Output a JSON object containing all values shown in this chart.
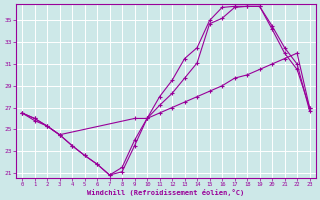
{
  "xlabel": "Windchill (Refroidissement éolien,°C)",
  "bg_color": "#cde8e8",
  "line_color": "#990099",
  "grid_color": "#ffffff",
  "ylim": [
    20.5,
    36.5
  ],
  "xlim": [
    -0.5,
    23.5
  ],
  "yticks": [
    21,
    23,
    25,
    27,
    29,
    31,
    33,
    35
  ],
  "xticks": [
    0,
    1,
    2,
    3,
    4,
    5,
    6,
    7,
    8,
    9,
    10,
    11,
    12,
    13,
    14,
    15,
    16,
    17,
    18,
    19,
    20,
    21,
    22,
    23
  ],
  "line1_x": [
    0,
    1,
    2,
    3,
    4,
    5,
    6,
    7,
    8,
    9,
    10,
    11,
    12,
    13,
    14,
    15,
    16,
    17,
    18,
    19,
    20,
    21,
    22,
    23
  ],
  "line1_y": [
    26.5,
    26.0,
    25.3,
    24.5,
    23.5,
    22.6,
    21.8,
    20.8,
    21.1,
    23.5,
    26.0,
    27.2,
    28.3,
    29.7,
    31.1,
    34.7,
    35.2,
    36.2,
    36.3,
    36.3,
    34.2,
    32.0,
    30.5,
    27.0
  ],
  "line2_x": [
    0,
    1,
    2,
    3,
    4,
    5,
    6,
    7,
    8,
    9,
    10,
    11,
    12,
    13,
    14,
    15,
    16,
    17,
    18,
    19,
    20,
    21,
    22,
    23
  ],
  "line2_y": [
    26.5,
    26.0,
    25.3,
    24.5,
    23.5,
    22.6,
    21.8,
    20.8,
    21.5,
    24.0,
    26.0,
    28.0,
    29.5,
    31.5,
    32.5,
    35.0,
    36.2,
    36.3,
    36.3,
    36.3,
    34.5,
    32.5,
    31.0,
    26.7
  ],
  "line3_x": [
    0,
    1,
    2,
    3,
    9,
    10,
    11,
    12,
    13,
    14,
    15,
    16,
    17,
    18,
    19,
    20,
    21,
    22,
    23
  ],
  "line3_y": [
    26.5,
    25.8,
    25.3,
    24.5,
    26.0,
    26.0,
    26.5,
    27.0,
    27.5,
    28.0,
    28.5,
    29.0,
    29.7,
    30.0,
    30.5,
    31.0,
    31.5,
    32.0,
    27.0
  ]
}
